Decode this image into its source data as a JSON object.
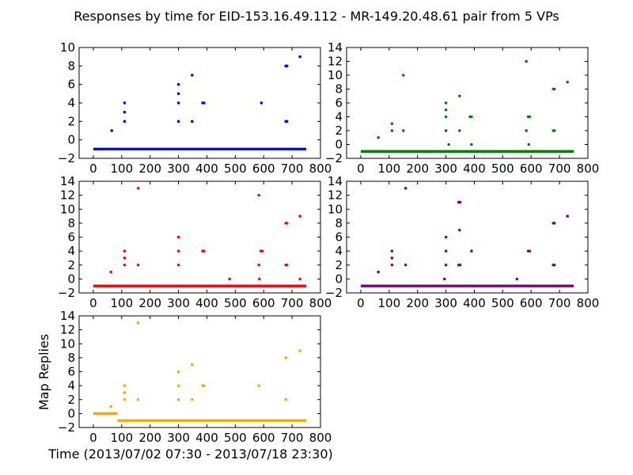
{
  "figure": {
    "title": "Responses by time for EID-153.16.49.112 - MR-149.20.48.61 pair from 5 VPs",
    "xlabel": "Time (2013/07/02 07:30 - 2013/07/18 23:30)",
    "ylabel": "Map Replies"
  },
  "chart_data": [
    {
      "type": "scatter",
      "panel": "top-left",
      "color": "#0000ff",
      "xlim": [
        -50,
        800
      ],
      "ylim": [
        -2,
        10
      ],
      "xticks": [
        0,
        100,
        200,
        300,
        400,
        500,
        600,
        700,
        800
      ],
      "yticks": [
        -2,
        0,
        2,
        4,
        6,
        8,
        10
      ],
      "baseline": {
        "y": -1,
        "x_start": 0,
        "x_end": 750
      },
      "points": [
        {
          "x": 65,
          "y": 1
        },
        {
          "x": 110,
          "y": 4
        },
        {
          "x": 110,
          "y": 3
        },
        {
          "x": 110,
          "y": 2
        },
        {
          "x": 300,
          "y": 6
        },
        {
          "x": 300,
          "y": 5
        },
        {
          "x": 300,
          "y": 4
        },
        {
          "x": 300,
          "y": 2
        },
        {
          "x": 348,
          "y": 7
        },
        {
          "x": 348,
          "y": 2
        },
        {
          "x": 385,
          "y": 4
        },
        {
          "x": 390,
          "y": 4
        },
        {
          "x": 592,
          "y": 4
        },
        {
          "x": 678,
          "y": 8
        },
        {
          "x": 682,
          "y": 8
        },
        {
          "x": 678,
          "y": 2
        },
        {
          "x": 682,
          "y": 2
        },
        {
          "x": 728,
          "y": 9
        }
      ]
    },
    {
      "type": "scatter",
      "panel": "top-right",
      "color": "#008000",
      "xlim": [
        -50,
        800
      ],
      "ylim": [
        -2,
        14
      ],
      "xticks": [
        0,
        100,
        200,
        300,
        400,
        500,
        600,
        700,
        800
      ],
      "yticks": [
        -2,
        0,
        2,
        4,
        6,
        8,
        10,
        12,
        14
      ],
      "baseline": {
        "y": -1,
        "x_start": 0,
        "x_end": 750
      },
      "points": [
        {
          "x": 62,
          "y": 1
        },
        {
          "x": 110,
          "y": 3
        },
        {
          "x": 110,
          "y": 2
        },
        {
          "x": 150,
          "y": 10
        },
        {
          "x": 150,
          "y": 2
        },
        {
          "x": 300,
          "y": 6
        },
        {
          "x": 300,
          "y": 5
        },
        {
          "x": 300,
          "y": 4
        },
        {
          "x": 300,
          "y": 2
        },
        {
          "x": 310,
          "y": 0
        },
        {
          "x": 348,
          "y": 7
        },
        {
          "x": 348,
          "y": 2
        },
        {
          "x": 385,
          "y": 4
        },
        {
          "x": 390,
          "y": 4
        },
        {
          "x": 390,
          "y": 0
        },
        {
          "x": 583,
          "y": 12
        },
        {
          "x": 583,
          "y": 2
        },
        {
          "x": 590,
          "y": 4
        },
        {
          "x": 595,
          "y": 4
        },
        {
          "x": 592,
          "y": 0
        },
        {
          "x": 678,
          "y": 8
        },
        {
          "x": 682,
          "y": 8
        },
        {
          "x": 678,
          "y": 2
        },
        {
          "x": 682,
          "y": 2
        },
        {
          "x": 728,
          "y": 9
        }
      ]
    },
    {
      "type": "scatter",
      "panel": "middle-left",
      "color": "#ff0000",
      "xlim": [
        -50,
        800
      ],
      "ylim": [
        -2,
        14
      ],
      "xticks": [
        0,
        100,
        200,
        300,
        400,
        500,
        600,
        700,
        800
      ],
      "yticks": [
        -2,
        0,
        2,
        4,
        6,
        8,
        10,
        12,
        14
      ],
      "baseline": {
        "y": -1,
        "x_start": 0,
        "x_end": 750
      },
      "points": [
        {
          "x": 62,
          "y": 1
        },
        {
          "x": 110,
          "y": 4
        },
        {
          "x": 110,
          "y": 3
        },
        {
          "x": 110,
          "y": 2
        },
        {
          "x": 158,
          "y": 13
        },
        {
          "x": 158,
          "y": 2
        },
        {
          "x": 300,
          "y": 6
        },
        {
          "x": 300,
          "y": 4
        },
        {
          "x": 300,
          "y": 2
        },
        {
          "x": 385,
          "y": 4
        },
        {
          "x": 390,
          "y": 4
        },
        {
          "x": 480,
          "y": 0
        },
        {
          "x": 583,
          "y": 12
        },
        {
          "x": 583,
          "y": 2
        },
        {
          "x": 590,
          "y": 4
        },
        {
          "x": 595,
          "y": 4
        },
        {
          "x": 585,
          "y": 0
        },
        {
          "x": 678,
          "y": 8
        },
        {
          "x": 682,
          "y": 8
        },
        {
          "x": 678,
          "y": 2
        },
        {
          "x": 682,
          "y": 2
        },
        {
          "x": 728,
          "y": 9
        },
        {
          "x": 728,
          "y": 0
        }
      ]
    },
    {
      "type": "scatter",
      "panel": "middle-right",
      "color": "#800080",
      "xlim": [
        -50,
        800
      ],
      "ylim": [
        -2,
        14
      ],
      "xticks": [
        0,
        100,
        200,
        300,
        400,
        500,
        600,
        700,
        800
      ],
      "yticks": [
        -2,
        0,
        2,
        4,
        6,
        8,
        10,
        12,
        14
      ],
      "baseline": {
        "y": -1,
        "x_start": 0,
        "x_end": 750
      },
      "points": [
        {
          "x": 62,
          "y": 1
        },
        {
          "x": 110,
          "y": 4
        },
        {
          "x": 110,
          "y": 3
        },
        {
          "x": 110,
          "y": 2
        },
        {
          "x": 158,
          "y": 13
        },
        {
          "x": 158,
          "y": 2
        },
        {
          "x": 295,
          "y": 0
        },
        {
          "x": 300,
          "y": 6
        },
        {
          "x": 300,
          "y": 4
        },
        {
          "x": 300,
          "y": 2
        },
        {
          "x": 345,
          "y": 11
        },
        {
          "x": 350,
          "y": 11
        },
        {
          "x": 348,
          "y": 7
        },
        {
          "x": 345,
          "y": 2
        },
        {
          "x": 350,
          "y": 2
        },
        {
          "x": 390,
          "y": 4
        },
        {
          "x": 550,
          "y": 0
        },
        {
          "x": 590,
          "y": 4
        },
        {
          "x": 595,
          "y": 4
        },
        {
          "x": 678,
          "y": 8
        },
        {
          "x": 682,
          "y": 8
        },
        {
          "x": 678,
          "y": 2
        },
        {
          "x": 682,
          "y": 2
        },
        {
          "x": 728,
          "y": 9
        }
      ]
    },
    {
      "type": "scatter",
      "panel": "bottom-left",
      "color": "#ffa500",
      "xlim": [
        -50,
        800
      ],
      "ylim": [
        -2,
        14
      ],
      "xticks": [
        0,
        100,
        200,
        300,
        400,
        500,
        600,
        700,
        800
      ],
      "yticks": [
        -2,
        0,
        2,
        4,
        6,
        8,
        10,
        12,
        14
      ],
      "baseline_segments": [
        {
          "y": 0,
          "x_start": 0,
          "x_end": 85
        },
        {
          "y": -1,
          "x_start": 85,
          "x_end": 750
        }
      ],
      "points": [
        {
          "x": 62,
          "y": 1
        },
        {
          "x": 110,
          "y": 4
        },
        {
          "x": 110,
          "y": 3
        },
        {
          "x": 110,
          "y": 2
        },
        {
          "x": 158,
          "y": 13
        },
        {
          "x": 158,
          "y": 2
        },
        {
          "x": 300,
          "y": 6
        },
        {
          "x": 300,
          "y": 4
        },
        {
          "x": 300,
          "y": 2
        },
        {
          "x": 348,
          "y": 7
        },
        {
          "x": 348,
          "y": 2
        },
        {
          "x": 385,
          "y": 4
        },
        {
          "x": 390,
          "y": 4
        },
        {
          "x": 583,
          "y": 4
        },
        {
          "x": 678,
          "y": 8
        },
        {
          "x": 678,
          "y": 2
        },
        {
          "x": 728,
          "y": 9
        }
      ]
    }
  ]
}
